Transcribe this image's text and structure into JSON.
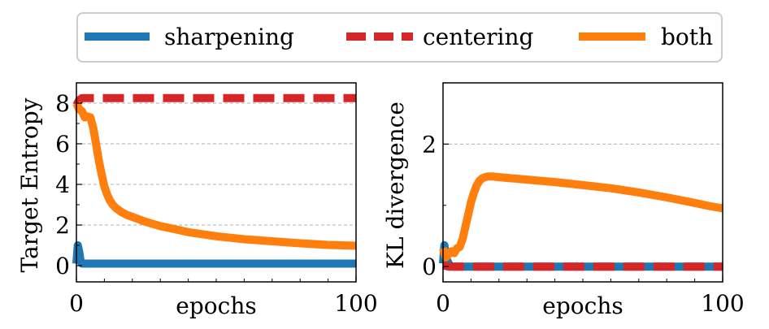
{
  "legend": {
    "items": [
      {
        "label": "sharpening",
        "color": "#1f77b4",
        "style": "solid"
      },
      {
        "label": "centering",
        "color": "#d62728",
        "style": "dashed"
      },
      {
        "label": "both",
        "color": "#ff7f0e",
        "style": "solid"
      }
    ],
    "placement": "top-center"
  },
  "chart_data": [
    {
      "type": "line",
      "xlabel": "epochs",
      "ylabel": "Target Entropy",
      "xlim": [
        0,
        100
      ],
      "ylim": [
        -0.8,
        9.0
      ],
      "xticks": [
        0,
        100
      ],
      "yticks": [
        0,
        2,
        4,
        6,
        8
      ],
      "grid": "horizontal dashed",
      "series": [
        {
          "name": "sharpening",
          "color": "#1f77b4",
          "dash": "solid",
          "x": [
            0,
            0.5,
            1,
            1.5,
            2,
            100
          ],
          "y": [
            0.1,
            1.0,
            0.7,
            0.2,
            0.1,
            0.1
          ]
        },
        {
          "name": "centering",
          "color": "#d62728",
          "dash": "dashed",
          "x": [
            0,
            1,
            2,
            100
          ],
          "y": [
            7.9,
            8.15,
            8.25,
            8.25
          ]
        },
        {
          "name": "both",
          "color": "#ff7f0e",
          "dash": "solid",
          "x": [
            0,
            1,
            2,
            3,
            4,
            5,
            6,
            7,
            8,
            9,
            10,
            11,
            12,
            13,
            14,
            16,
            18,
            20,
            25,
            30,
            35,
            40,
            50,
            60,
            70,
            80,
            90,
            95,
            100
          ],
          "y": [
            8.0,
            7.7,
            7.6,
            7.3,
            7.35,
            7.3,
            6.8,
            6.0,
            5.2,
            4.5,
            3.9,
            3.5,
            3.2,
            3.0,
            2.85,
            2.65,
            2.5,
            2.4,
            2.15,
            1.95,
            1.8,
            1.65,
            1.45,
            1.3,
            1.2,
            1.1,
            1.02,
            1.0,
            0.98
          ]
        }
      ]
    },
    {
      "type": "line",
      "xlabel": "epochs",
      "ylabel": "KL divergence",
      "xlim": [
        0,
        100
      ],
      "ylim": [
        -0.25,
        3.0
      ],
      "xticks": [
        0,
        100
      ],
      "yticks": [
        0,
        2
      ],
      "grid": "horizontal dashed",
      "series": [
        {
          "name": "sharpening",
          "color": "#1f77b4",
          "dash": "solid",
          "x": [
            0,
            0.5,
            1,
            2,
            3,
            100
          ],
          "y": [
            0.05,
            0.35,
            0.15,
            0.05,
            0.0,
            0.0
          ]
        },
        {
          "name": "centering",
          "color": "#d62728",
          "dash": "dashed",
          "x": [
            0,
            1,
            2,
            3,
            100
          ],
          "y": [
            0.02,
            0.01,
            0.0,
            0.0,
            0.0
          ]
        },
        {
          "name": "both",
          "color": "#ff7f0e",
          "dash": "solid",
          "x": [
            0,
            1,
            2,
            3,
            4,
            5,
            6,
            7,
            8,
            9,
            10,
            11,
            12,
            13,
            14,
            15,
            16,
            17,
            18,
            20,
            25,
            30,
            40,
            50,
            60,
            70,
            80,
            90,
            95,
            100
          ],
          "y": [
            0.3,
            0.15,
            0.2,
            0.25,
            0.22,
            0.3,
            0.32,
            0.45,
            0.65,
            0.85,
            1.05,
            1.2,
            1.32,
            1.4,
            1.44,
            1.46,
            1.47,
            1.47,
            1.47,
            1.46,
            1.44,
            1.42,
            1.38,
            1.33,
            1.28,
            1.21,
            1.13,
            1.04,
            0.99,
            0.95
          ]
        }
      ]
    }
  ]
}
